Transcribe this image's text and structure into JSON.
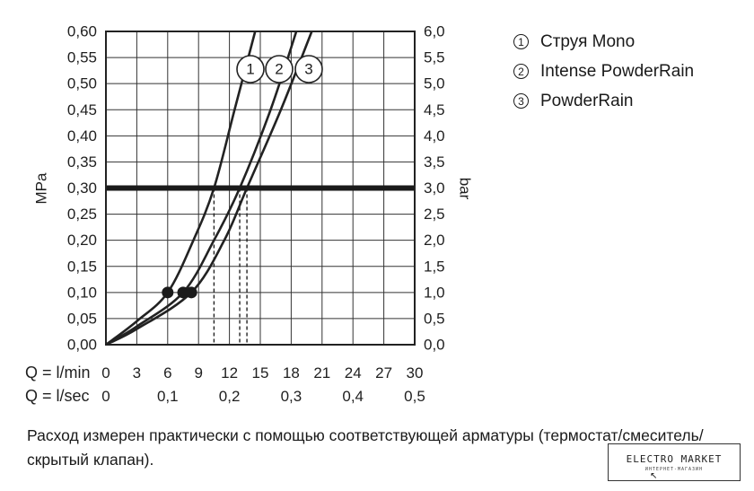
{
  "chart_data": {
    "type": "line",
    "left_axis": {
      "label": "MPa",
      "ticks": [
        "0,00",
        "0,05",
        "0,10",
        "0,15",
        "0,20",
        "0,25",
        "0,30",
        "0,35",
        "0,40",
        "0,45",
        "0,50",
        "0,55",
        "0,60"
      ],
      "range": [
        0,
        0.6
      ]
    },
    "right_axis": {
      "label": "bar",
      "ticks": [
        "0,0",
        "0,5",
        "1,0",
        "1,5",
        "2,0",
        "2,5",
        "3,0",
        "3,5",
        "4,0",
        "4,5",
        "5,0",
        "5,5",
        "6,0"
      ],
      "range": [
        0,
        6
      ]
    },
    "x_axis": {
      "range": [
        0,
        30
      ],
      "flow_lmin_label": "Q = l/min",
      "flow_lmin_ticks": [
        "0",
        "3",
        "6",
        "9",
        "12",
        "15",
        "18",
        "21",
        "24",
        "27",
        "30"
      ],
      "flow_lsec_label": "Q = l/sec",
      "flow_lsec_ticks": [
        "0",
        "0,1",
        "0,2",
        "0,3",
        "0,4",
        "0,5"
      ]
    },
    "grid": true,
    "reference_line": {
      "pressure_mpa": 0.3
    },
    "series": [
      {
        "name": "Струя Mono",
        "marker": "1",
        "flow_lmin": [
          0,
          3,
          6,
          8.5,
          10.5,
          12.5,
          14.5
        ],
        "pressure_mpa": [
          0,
          0.045,
          0.1,
          0.2,
          0.3,
          0.45,
          0.6
        ],
        "highlight_point": {
          "flow_lmin": 6,
          "pressure_mpa": 0.1
        },
        "dashed_at_flow": 10.5
      },
      {
        "name": "Intense PowderRain",
        "marker": "2",
        "flow_lmin": [
          0,
          3,
          7.5,
          10.5,
          13,
          16,
          18.5
        ],
        "pressure_mpa": [
          0,
          0.035,
          0.1,
          0.2,
          0.3,
          0.45,
          0.6
        ],
        "highlight_point": {
          "flow_lmin": 7.5,
          "pressure_mpa": 0.1
        },
        "dashed_at_flow": 13
      },
      {
        "name": "PowderRain",
        "marker": "3",
        "flow_lmin": [
          0,
          3,
          8.3,
          11.5,
          13.7,
          17,
          20
        ],
        "pressure_mpa": [
          0,
          0.03,
          0.1,
          0.2,
          0.3,
          0.45,
          0.6
        ],
        "highlight_point": {
          "flow_lmin": 8.3,
          "pressure_mpa": 0.1
        },
        "dashed_at_flow": 13.7
      }
    ],
    "legend_placement": "top-right"
  },
  "legend": [
    {
      "marker": "1",
      "label": "Струя Mono"
    },
    {
      "marker": "2",
      "label": "Intense PowderRain"
    },
    {
      "marker": "3",
      "label": "PowderRain"
    }
  ],
  "footnote": "Расход измерен практически с помощью соответствующей арматуры (термостат/смеситель/скрытый клапан).",
  "watermark": {
    "title": "ELECTRO MARKET",
    "subtitle": "ИНТЕРНЕТ-МАГАЗИН"
  }
}
